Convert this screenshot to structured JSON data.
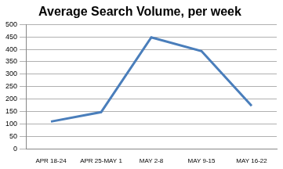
{
  "chart_data": {
    "type": "line",
    "title": "Average Search Volume, per week",
    "categories": [
      "APR 18-24",
      "APR 25-MAY 1",
      "MAY 2-8",
      "MAY 9-15",
      "MAY 16-22"
    ],
    "values": [
      110,
      148,
      448,
      393,
      173
    ],
    "color": "#4a7ebb",
    "ylim": [
      0,
      500
    ],
    "yticks": [
      0,
      50,
      100,
      150,
      200,
      250,
      300,
      350,
      400,
      450,
      500
    ],
    "grid": true
  }
}
